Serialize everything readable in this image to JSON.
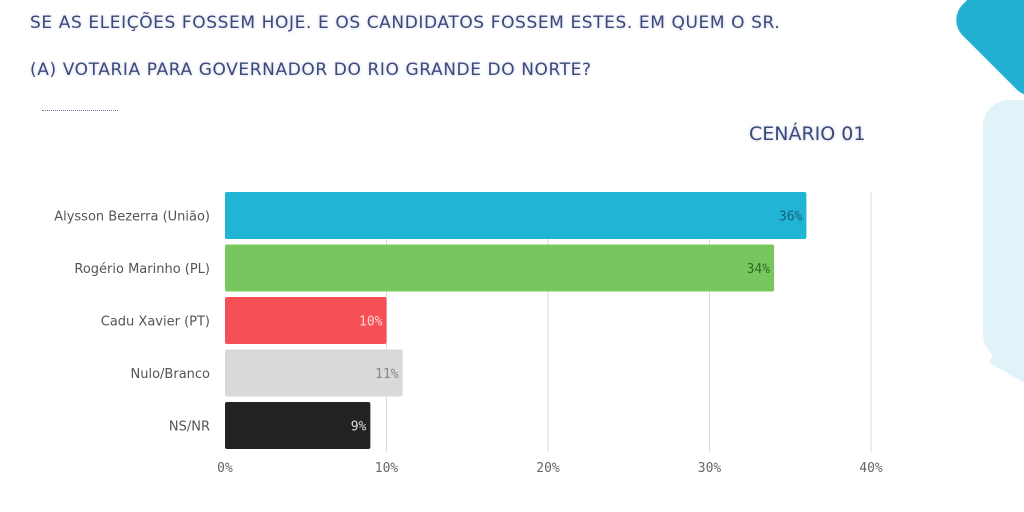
{
  "header": {
    "title_line1": "SE AS ELEIÇÕES FOSSEM HOJE. E OS CANDIDATOS FOSSEM ESTES. EM QUEM O SR.",
    "title_line2": "(A) VOTARIA PARA GOVERNADOR DO RIO GRANDE DO NORTE?",
    "scenario": "CENÁRIO 01"
  },
  "chart_data": {
    "type": "bar",
    "orientation": "horizontal",
    "title": "CENÁRIO 01",
    "categories": [
      "Alysson Bezerra (União)",
      "Rogério Marinho (PL)",
      "Cadu Xavier (PT)",
      "Nulo/Branco",
      "NS/NR"
    ],
    "values": [
      36,
      34,
      10,
      11,
      9
    ],
    "value_labels": [
      "36%",
      "34%",
      "10%",
      "11%",
      "9%"
    ],
    "colors": [
      "#22b4d4",
      "#76c85e",
      "#f65057",
      "#d9d9d9",
      "#222222"
    ],
    "label_colors": [
      "#1a5f7a",
      "#2e6b23",
      "#ffd6d8",
      "#888888",
      "#dddddd"
    ],
    "xlim": [
      0,
      40
    ],
    "xticks": [
      0,
      10,
      20,
      30,
      40
    ],
    "xtick_labels": [
      "0%",
      "10%",
      "20%",
      "30%",
      "40%"
    ],
    "xlabel": "",
    "ylabel": "",
    "grid": true
  }
}
